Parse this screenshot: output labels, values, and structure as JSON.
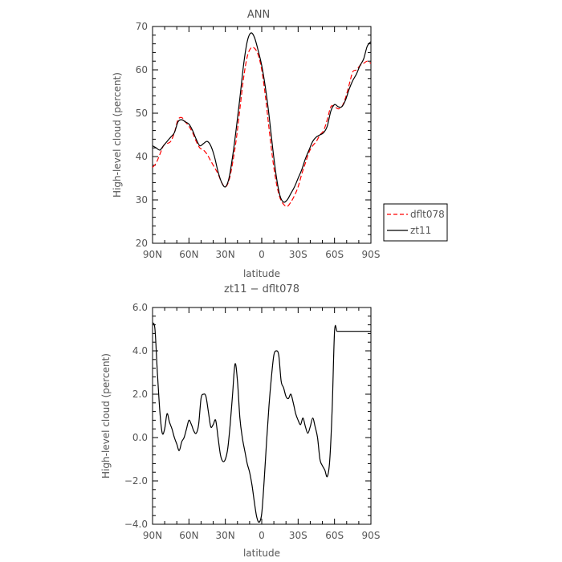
{
  "chart_data": [
    {
      "type": "line",
      "title": "ANN",
      "xlabel": "latitude",
      "ylabel": "High-level cloud (percent)",
      "x_ticks": [
        "90N",
        "60N",
        "30N",
        "0",
        "30S",
        "60S",
        "90S"
      ],
      "y_ticks": [
        "20",
        "30",
        "40",
        "50",
        "60",
        "70"
      ],
      "xlim": [
        90,
        -90
      ],
      "ylim": [
        20,
        70
      ],
      "legend_position": "right",
      "series": [
        {
          "name": "dflt078",
          "color": "#ff0000",
          "dash": true,
          "x": [
            90,
            87,
            84,
            81,
            78,
            75,
            72,
            69,
            66,
            63,
            60,
            57,
            54,
            51,
            48,
            45,
            42,
            39,
            36,
            33,
            30,
            27,
            24,
            21,
            18,
            15,
            12,
            9,
            6,
            3,
            0,
            -3,
            -6,
            -9,
            -12,
            -15,
            -18,
            -21,
            -24,
            -27,
            -30,
            -33,
            -36,
            -39,
            -42,
            -45,
            -48,
            -51,
            -54,
            -57,
            -60,
            -63,
            -66,
            -69,
            -72,
            -75,
            -78,
            -81,
            -84,
            -87,
            -90
          ],
          "y": [
            37.5,
            38.5,
            40.5,
            42.5,
            43.0,
            43.5,
            45.5,
            48.5,
            49.0,
            48.0,
            47.0,
            45.5,
            43.5,
            42.0,
            41.5,
            40.5,
            39.0,
            37.5,
            36.0,
            34.0,
            33.0,
            34.5,
            38.5,
            44.0,
            51.0,
            58.0,
            63.0,
            65.0,
            65.0,
            63.5,
            60.0,
            54.0,
            46.5,
            39.5,
            34.0,
            30.5,
            29.0,
            28.5,
            29.5,
            31.0,
            33.0,
            36.0,
            38.5,
            41.0,
            42.5,
            43.5,
            45.0,
            46.0,
            48.5,
            51.5,
            51.5,
            51.0,
            51.5,
            53.5,
            56.5,
            59.5,
            60.0,
            61.0,
            61.5,
            62.0,
            61.5
          ]
        },
        {
          "name": "zt11",
          "color": "#000000",
          "dash": false,
          "x": [
            90,
            87,
            84,
            81,
            78,
            75,
            72,
            69,
            66,
            63,
            60,
            57,
            54,
            51,
            48,
            45,
            42,
            39,
            36,
            33,
            30,
            27,
            24,
            21,
            18,
            15,
            12,
            9,
            6,
            3,
            0,
            -3,
            -6,
            -9,
            -12,
            -15,
            -18,
            -21,
            -24,
            -27,
            -30,
            -33,
            -36,
            -39,
            -42,
            -45,
            -48,
            -51,
            -54,
            -57,
            -60,
            -63,
            -66,
            -69,
            -72,
            -75,
            -78,
            -81,
            -84,
            -87,
            -90
          ],
          "y": [
            42.5,
            42.0,
            41.5,
            42.5,
            43.5,
            44.5,
            45.5,
            48.0,
            48.5,
            48.0,
            47.5,
            46.0,
            44.0,
            42.5,
            43.0,
            43.5,
            42.5,
            40.0,
            36.5,
            34.0,
            33.0,
            35.0,
            40.0,
            46.5,
            53.5,
            61.0,
            66.5,
            68.5,
            67.5,
            64.5,
            61.0,
            56.0,
            49.5,
            42.0,
            35.5,
            31.0,
            29.5,
            30.0,
            31.5,
            33.0,
            35.0,
            37.0,
            39.5,
            41.5,
            43.5,
            44.5,
            45.0,
            45.5,
            47.0,
            50.5,
            52.0,
            51.5,
            51.5,
            53.0,
            55.5,
            57.5,
            59.0,
            61.0,
            62.5,
            65.5,
            66.5
          ]
        }
      ]
    },
    {
      "type": "line",
      "title": "zt11 − dflt078",
      "xlabel": "latitude",
      "ylabel": "High-level cloud (percent)",
      "x_ticks": [
        "90N",
        "60N",
        "30N",
        "0",
        "30S",
        "60S",
        "90S"
      ],
      "y_ticks": [
        "−4.0",
        "−2.0",
        "0.0",
        "2.0",
        "4.0",
        "6.0"
      ],
      "xlim": [
        90,
        -90
      ],
      "ylim": [
        -4,
        6
      ],
      "series": [
        {
          "color": "#000000",
          "dash": false,
          "x": [
            90,
            88,
            86,
            84,
            82,
            80,
            78,
            76,
            74,
            72,
            70,
            68,
            66,
            64,
            62,
            60,
            58,
            56,
            54,
            52,
            50,
            48,
            46,
            44,
            42,
            40,
            38,
            36,
            34,
            32,
            30,
            28,
            26,
            24,
            22,
            20,
            18,
            16,
            14,
            12,
            10,
            8,
            6,
            4,
            2,
            0,
            -2,
            -4,
            -6,
            -8,
            -10,
            -12,
            -14,
            -16,
            -18,
            -20,
            -22,
            -24,
            -26,
            -28,
            -30,
            -32,
            -34,
            -36,
            -38,
            -40,
            -42,
            -44,
            -46,
            -48,
            -50,
            -52,
            -54,
            -56,
            -58,
            -60,
            -62,
            -64,
            -66,
            -68,
            -70,
            -72,
            -74,
            -76,
            -78,
            -80,
            -82,
            -84,
            -86,
            -88,
            -90
          ],
          "y": [
            5.3,
            5.0,
            3.0,
            1.2,
            0.2,
            0.4,
            1.1,
            0.7,
            0.4,
            0.0,
            -0.3,
            -0.6,
            -0.2,
            0.0,
            0.4,
            0.8,
            0.6,
            0.3,
            0.2,
            0.6,
            1.8,
            2.0,
            1.9,
            1.2,
            0.5,
            0.6,
            0.8,
            0.0,
            -0.8,
            -1.1,
            -1.0,
            -0.5,
            0.6,
            2.0,
            3.4,
            2.6,
            0.9,
            0.0,
            -0.6,
            -1.2,
            -1.6,
            -2.2,
            -3.0,
            -3.7,
            -3.9,
            -3.5,
            -2.0,
            -0.2,
            1.5,
            2.8,
            3.8,
            4.0,
            3.8,
            2.6,
            2.3,
            1.9,
            1.8,
            2.0,
            1.6,
            1.1,
            0.8,
            0.6,
            0.9,
            0.5,
            0.2,
            0.5,
            0.9,
            0.5,
            0.0,
            -1.0,
            -1.3,
            -1.5,
            -1.8,
            -1.1,
            1.2,
            4.9,
            4.9,
            4.9,
            4.9,
            4.9,
            4.9,
            4.9,
            4.9,
            4.9,
            4.9,
            4.9,
            4.9,
            4.9,
            4.9,
            4.9,
            4.9
          ]
        }
      ]
    }
  ]
}
